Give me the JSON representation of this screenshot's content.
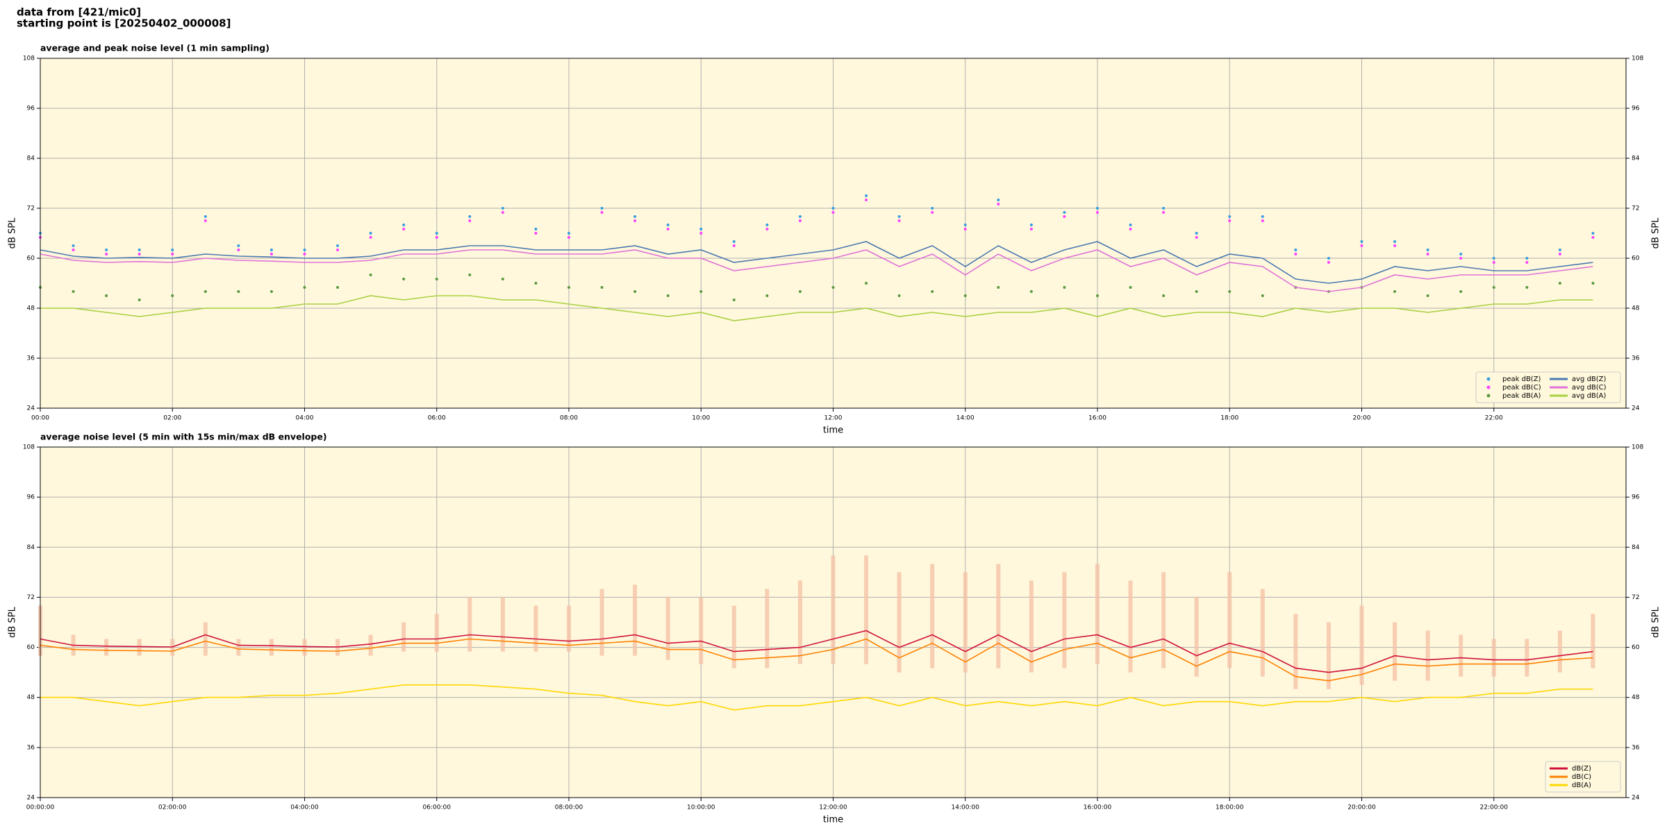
{
  "header": {
    "lines": [
      "data from [421/mic0]",
      "starting point is [20250402_000008]"
    ]
  },
  "chart_data": [
    {
      "type": "line",
      "title": "average and peak noise level (1 min sampling)",
      "xlabel": "time",
      "ylabel": "dB SPL",
      "xlim": [
        0,
        24
      ],
      "ylim": [
        24,
        108
      ],
      "yticks": [
        24,
        36,
        48,
        60,
        72,
        84,
        96,
        108
      ],
      "xticks": [
        {
          "value": 0,
          "label": "00:00"
        },
        {
          "value": 2,
          "label": "02:00"
        },
        {
          "value": 4,
          "label": "04:00"
        },
        {
          "value": 6,
          "label": "06:00"
        },
        {
          "value": 8,
          "label": "08:00"
        },
        {
          "value": 10,
          "label": "10:00"
        },
        {
          "value": 12,
          "label": "12:00"
        },
        {
          "value": 14,
          "label": "14:00"
        },
        {
          "value": 16,
          "label": "16:00"
        },
        {
          "value": 18,
          "label": "18:00"
        },
        {
          "value": 20,
          "label": "20:00"
        },
        {
          "value": 22,
          "label": "22:00"
        }
      ],
      "grid": true,
      "background": "#fff8dc",
      "legend": "lower right",
      "legend_columns": 2,
      "x": [
        0,
        0.5,
        1,
        1.5,
        2,
        2.5,
        3,
        3.5,
        4,
        4.5,
        5,
        5.5,
        6,
        6.5,
        7,
        7.5,
        8,
        8.5,
        9,
        9.5,
        10,
        10.5,
        11,
        11.5,
        12,
        12.5,
        13,
        13.5,
        14,
        14.5,
        15,
        15.5,
        16,
        16.5,
        17,
        17.5,
        18,
        18.5,
        19,
        19.5,
        20,
        20.5,
        21,
        21.5,
        22,
        22.5,
        23,
        23.5
      ],
      "series": [
        {
          "name": "peak dB(Z)",
          "color": "#3a9ee0",
          "style": "markers",
          "values": [
            66,
            63,
            62,
            62,
            62,
            70,
            63,
            62,
            62,
            63,
            66,
            68,
            66,
            70,
            72,
            67,
            66,
            72,
            70,
            68,
            67,
            64,
            68,
            70,
            72,
            75,
            70,
            72,
            68,
            74,
            68,
            71,
            72,
            68,
            72,
            66,
            70,
            70,
            62,
            60,
            64,
            64,
            62,
            61,
            60,
            60,
            62,
            66
          ]
        },
        {
          "name": "peak dB(C)",
          "color": "#ff40ff",
          "style": "markers",
          "values": [
            65,
            62,
            61,
            61,
            61,
            69,
            62,
            61,
            61,
            62,
            65,
            67,
            65,
            69,
            71,
            66,
            65,
            71,
            69,
            67,
            66,
            63,
            67,
            69,
            71,
            74,
            69,
            71,
            67,
            73,
            67,
            70,
            71,
            67,
            71,
            65,
            69,
            69,
            61,
            59,
            63,
            63,
            61,
            60,
            59,
            59,
            61,
            65
          ]
        },
        {
          "name": "peak dB(A)",
          "color": "#5a9a40",
          "style": "markers",
          "values": [
            53,
            52,
            51,
            50,
            51,
            52,
            52,
            52,
            53,
            53,
            56,
            55,
            55,
            56,
            55,
            54,
            53,
            53,
            52,
            51,
            52,
            50,
            51,
            52,
            53,
            54,
            51,
            52,
            51,
            53,
            52,
            53,
            51,
            53,
            51,
            52,
            52,
            51,
            53,
            52,
            53,
            52,
            51,
            52,
            53,
            53,
            54,
            54
          ]
        },
        {
          "name": "avg dB(Z)",
          "color": "#4a78b0",
          "style": "line",
          "values": [
            62,
            60.5,
            60,
            60.2,
            60,
            61,
            60.5,
            60.3,
            60,
            60,
            60.5,
            62,
            62,
            63,
            63,
            62,
            62,
            62,
            63,
            61,
            62,
            59,
            60,
            61,
            62,
            64,
            60,
            63,
            58,
            63,
            59,
            62,
            64,
            60,
            62,
            58,
            61,
            60,
            55,
            54,
            55,
            58,
            57,
            58,
            57,
            57,
            58,
            59
          ]
        },
        {
          "name": "avg dB(C)",
          "color": "#e070d8",
          "style": "line",
          "values": [
            61,
            59.5,
            59,
            59.2,
            59,
            60,
            59.5,
            59.3,
            59,
            59,
            59.5,
            61,
            61,
            62,
            62,
            61,
            61,
            61,
            62,
            60,
            60,
            57,
            58,
            59,
            60,
            62,
            58,
            61,
            56,
            61,
            57,
            60,
            62,
            58,
            60,
            56,
            59,
            58,
            53,
            52,
            53,
            56,
            55,
            56,
            56,
            56,
            57,
            58
          ]
        },
        {
          "name": "avg dB(A)",
          "color": "#a8d040",
          "style": "line",
          "values": [
            48,
            48,
            47,
            46,
            47,
            48,
            48,
            48,
            49,
            49,
            51,
            50,
            51,
            51,
            50,
            50,
            49,
            48,
            47,
            46,
            47,
            45,
            46,
            47,
            47,
            48,
            46,
            47,
            46,
            47,
            47,
            48,
            46,
            48,
            46,
            47,
            47,
            46,
            48,
            47,
            48,
            48,
            47,
            48,
            49,
            49,
            50,
            50
          ]
        }
      ]
    },
    {
      "type": "line",
      "title": "average noise level (5 min with 15s min/max dB envelope)",
      "xlabel": "time",
      "ylabel": "dB SPL",
      "xlim": [
        0,
        24
      ],
      "ylim": [
        24,
        108
      ],
      "yticks": [
        24,
        36,
        48,
        60,
        72,
        84,
        96,
        108
      ],
      "xticks": [
        {
          "value": 0,
          "label": "00:00:00"
        },
        {
          "value": 2,
          "label": "02:00:00"
        },
        {
          "value": 4,
          "label": "04:00:00"
        },
        {
          "value": 6,
          "label": "06:00:00"
        },
        {
          "value": 8,
          "label": "08:00:00"
        },
        {
          "value": 10,
          "label": "10:00:00"
        },
        {
          "value": 12,
          "label": "12:00:00"
        },
        {
          "value": 14,
          "label": "14:00:00"
        },
        {
          "value": 16,
          "label": "16:00:00"
        },
        {
          "value": 18,
          "label": "18:00:00"
        },
        {
          "value": 20,
          "label": "20:00:00"
        },
        {
          "value": 22,
          "label": "22:00:00"
        }
      ],
      "grid": true,
      "background": "#fff8dc",
      "legend": "lower right",
      "legend_columns": 1,
      "x": [
        0,
        0.5,
        1,
        1.5,
        2,
        2.5,
        3,
        3.5,
        4,
        4.5,
        5,
        5.5,
        6,
        6.5,
        7,
        7.5,
        8,
        8.5,
        9,
        9.5,
        10,
        10.5,
        11,
        11.5,
        12,
        12.5,
        13,
        13.5,
        14,
        14.5,
        15,
        15.5,
        16,
        16.5,
        17,
        17.5,
        18,
        18.5,
        19,
        19.5,
        20,
        20.5,
        21,
        21.5,
        22,
        22.5,
        23,
        23.5
      ],
      "envelope": {
        "color": "#f5c3a8",
        "max": [
          70,
          63,
          62,
          62,
          62,
          66,
          62,
          62,
          62,
          62,
          63,
          66,
          68,
          72,
          72,
          70,
          70,
          74,
          75,
          72,
          72,
          70,
          74,
          76,
          82,
          82,
          78,
          80,
          78,
          80,
          76,
          78,
          80,
          76,
          78,
          72,
          78,
          74,
          68,
          66,
          70,
          66,
          64,
          63,
          62,
          62,
          64,
          68
        ],
        "min": [
          58,
          58,
          58,
          58,
          58,
          58,
          58,
          58,
          58,
          58,
          58,
          59,
          59,
          59,
          59,
          59,
          59,
          58,
          58,
          57,
          56,
          55,
          55,
          56,
          56,
          56,
          54,
          55,
          54,
          55,
          54,
          55,
          56,
          54,
          55,
          53,
          55,
          53,
          50,
          50,
          51,
          52,
          52,
          53,
          53,
          53,
          54,
          55
        ]
      },
      "series": [
        {
          "name": "dB(Z)",
          "color": "#d0103a",
          "style": "line",
          "values": [
            62,
            60.5,
            60.3,
            60.2,
            60.1,
            63,
            60.5,
            60.4,
            60.2,
            60.1,
            60.8,
            62,
            62,
            63,
            62.5,
            62,
            61.5,
            62,
            63,
            61,
            61.5,
            59,
            59.5,
            60,
            62,
            64,
            60,
            63,
            59,
            63,
            59,
            62,
            63,
            60,
            62,
            58,
            61,
            59,
            55,
            54,
            55,
            58,
            57,
            57.5,
            57,
            57,
            58,
            59
          ]
        },
        {
          "name": "dB(C)",
          "color": "#ff8000",
          "style": "line",
          "values": [
            60.5,
            59.5,
            59.3,
            59.2,
            59.1,
            61.5,
            59.6,
            59.4,
            59.2,
            59.1,
            59.8,
            61,
            61,
            62,
            61.5,
            61,
            60.5,
            61,
            61.5,
            59.5,
            59.5,
            57,
            57.5,
            58,
            59.5,
            62,
            57.5,
            61,
            56.5,
            61,
            56.5,
            59.5,
            61,
            57.5,
            59.5,
            55.5,
            59,
            57.5,
            53,
            52,
            53.5,
            56,
            55.5,
            56,
            56,
            56,
            57,
            57.5
          ]
        },
        {
          "name": "dB(A)",
          "color": "#ffd700",
          "style": "line",
          "values": [
            48,
            48,
            47,
            46,
            47,
            48,
            48,
            48.5,
            48.5,
            49,
            50,
            51,
            51,
            51,
            50.5,
            50,
            49,
            48.5,
            47,
            46,
            47,
            45,
            46,
            46,
            47,
            48,
            46,
            48,
            46,
            47,
            46,
            47,
            46,
            48,
            46,
            47,
            47,
            46,
            47,
            47,
            48,
            47,
            48,
            48,
            49,
            49,
            50,
            50
          ]
        }
      ]
    }
  ]
}
